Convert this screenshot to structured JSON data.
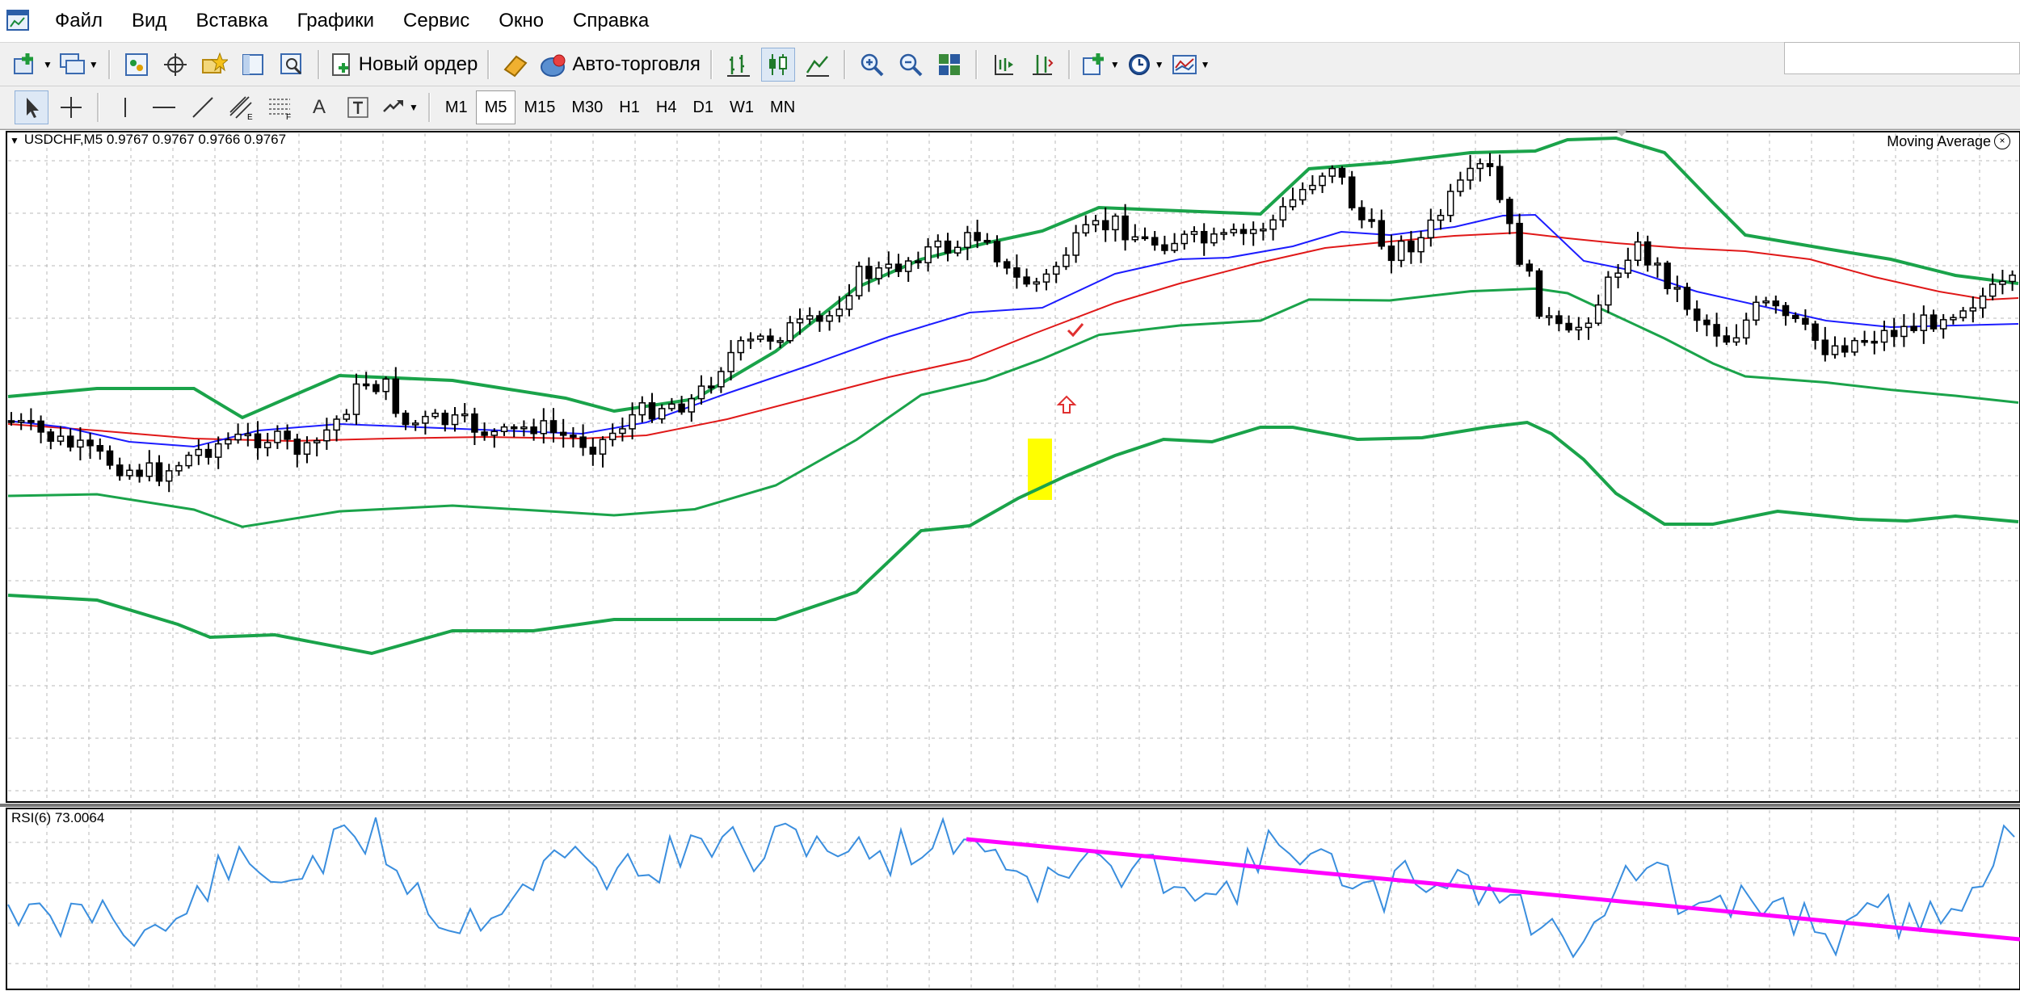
{
  "menu": {
    "items": [
      "Файл",
      "Вид",
      "Вставка",
      "Графики",
      "Сервис",
      "Окно",
      "Справка"
    ]
  },
  "toolbar": {
    "new_order_label": "Новый ордер",
    "auto_trading_label": "Авто-торговля",
    "timeframes": [
      "M1",
      "M5",
      "M15",
      "M30",
      "H1",
      "H4",
      "D1",
      "W1",
      "MN"
    ],
    "active_timeframe": "M5",
    "text_tool_label": "A"
  },
  "chart": {
    "symbol_label": "USDCHF,M5  0.9767 0.9767 0.9766 0.9767",
    "indicator_label": "Moving Average",
    "rsi_label": "RSI(6) 73.0064",
    "colors": {
      "bollinger": "#1aa34a",
      "ma_fast": "#1c1cff",
      "ma_slow": "#e01818",
      "rsi": "#3a8ede",
      "trendline": "#ff00ff",
      "highlight": "#ffff00",
      "candle": "#000000"
    }
  }
}
